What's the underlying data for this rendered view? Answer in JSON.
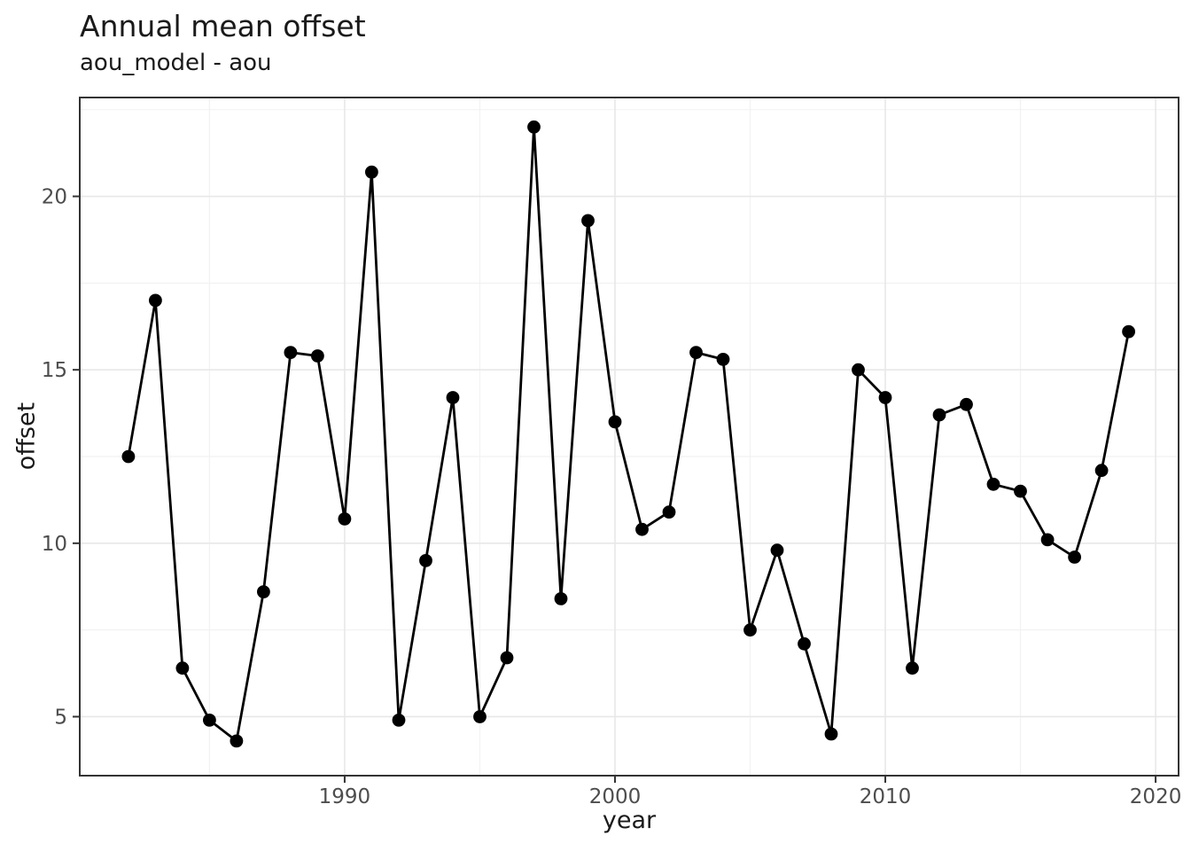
{
  "page": {
    "title": "Annual mean offset",
    "subtitle": "aou_model - aou"
  },
  "chart_data": {
    "type": "line",
    "title": "Annual mean offset",
    "subtitle": "aou_model - aou",
    "xlabel": "year",
    "ylabel": "offset",
    "series_name": "offset (aou_model - aou)",
    "x": [
      1982,
      1983,
      1984,
      1985,
      1986,
      1987,
      1988,
      1989,
      1990,
      1991,
      1992,
      1993,
      1994,
      1995,
      1996,
      1997,
      1998,
      1999,
      2000,
      2001,
      2002,
      2003,
      2004,
      2005,
      2006,
      2007,
      2008,
      2009,
      2010,
      2011,
      2012,
      2013,
      2014,
      2015,
      2016,
      2017,
      2018,
      2019
    ],
    "y": [
      12.5,
      17.0,
      6.4,
      4.9,
      4.3,
      8.6,
      15.5,
      15.4,
      10.7,
      20.7,
      4.9,
      9.5,
      14.2,
      5.0,
      6.7,
      22.0,
      8.4,
      19.3,
      13.5,
      10.4,
      10.9,
      15.5,
      15.3,
      7.5,
      9.8,
      7.1,
      4.5,
      15.0,
      14.2,
      6.4,
      13.7,
      14.0,
      11.7,
      11.5,
      10.1,
      9.6,
      12.1,
      16.1
    ],
    "x_ticks": {
      "values": [
        1990,
        2000,
        2010,
        2020
      ],
      "labels": [
        "1990",
        "2000",
        "2010",
        "2020"
      ]
    },
    "y_ticks": {
      "values": [
        5,
        10,
        15,
        20
      ],
      "labels": [
        "5",
        "10",
        "15",
        "20"
      ]
    },
    "x_minor_ticks": [
      1985,
      1995,
      2005,
      2015
    ],
    "y_minor_ticks": [
      7.5,
      12.5,
      17.5,
      22.5
    ],
    "xlim": [
      1980.2,
      2020.85
    ],
    "ylim": [
      3.3,
      22.85
    ],
    "grid": true,
    "legend_position": "none",
    "marker": "circle",
    "marker_radius": 7.4,
    "line_width": 2.8,
    "line_color": "#000000",
    "point_color": "#000000",
    "background_color": "#ffffff",
    "grid_major_color": "#e8e8e8",
    "grid_minor_color": "#f2f2f2",
    "panel_border_color": "#333333",
    "tick_mark_color": "#333333",
    "tick_label_color": "#4d4d4d",
    "text_color": "#1a1a1a"
  }
}
